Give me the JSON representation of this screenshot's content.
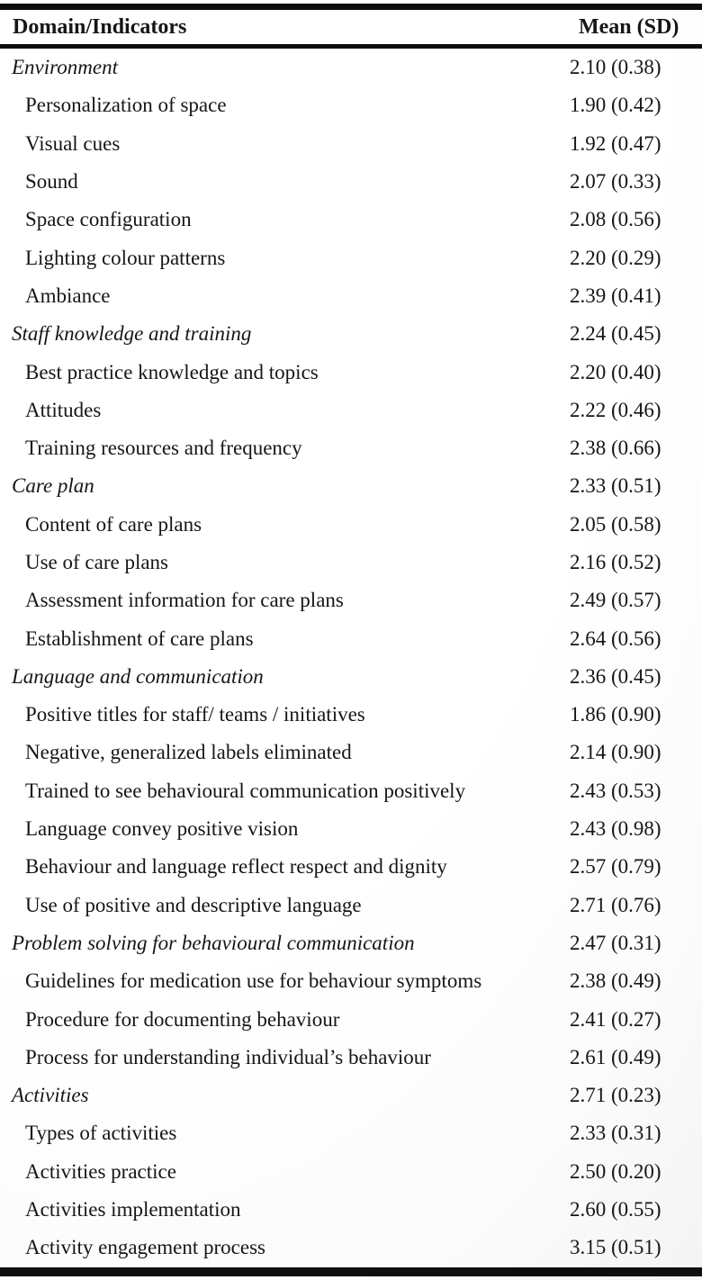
{
  "colors": {
    "rule": "#0d0d0d",
    "text": "#161616",
    "background": "#fdfdfd"
  },
  "table": {
    "header": {
      "domain_label": "Domain/Indicators",
      "mean_label": "Mean (SD)"
    },
    "rows": [
      {
        "level": "domain",
        "label": "Environment",
        "mean_sd": "2.10 (0.38)"
      },
      {
        "level": "indicator",
        "label": "Personalization of space",
        "mean_sd": "1.90 (0.42)"
      },
      {
        "level": "indicator",
        "label": "Visual cues",
        "mean_sd": "1.92 (0.47)"
      },
      {
        "level": "indicator",
        "label": "Sound",
        "mean_sd": "2.07 (0.33)"
      },
      {
        "level": "indicator",
        "label": "Space configuration",
        "mean_sd": "2.08 (0.56)"
      },
      {
        "level": "indicator",
        "label": "Lighting colour patterns",
        "mean_sd": "2.20 (0.29)"
      },
      {
        "level": "indicator",
        "label": "Ambiance",
        "mean_sd": "2.39 (0.41)"
      },
      {
        "level": "domain",
        "label": "Staff knowledge and training",
        "mean_sd": "2.24 (0.45)"
      },
      {
        "level": "indicator",
        "label": "Best practice knowledge and topics",
        "mean_sd": "2.20 (0.40)"
      },
      {
        "level": "indicator",
        "label": "Attitudes",
        "mean_sd": "2.22 (0.46)"
      },
      {
        "level": "indicator",
        "label": "Training resources and frequency",
        "mean_sd": "2.38 (0.66)"
      },
      {
        "level": "domain",
        "label": "Care plan",
        "mean_sd": "2.33 (0.51)"
      },
      {
        "level": "indicator",
        "label": "Content of care plans",
        "mean_sd": "2.05 (0.58)"
      },
      {
        "level": "indicator",
        "label": "Use of care plans",
        "mean_sd": "2.16 (0.52)"
      },
      {
        "level": "indicator",
        "label": "Assessment information for care plans",
        "mean_sd": "2.49 (0.57)"
      },
      {
        "level": "indicator",
        "label": "Establishment of care plans",
        "mean_sd": "2.64 (0.56)"
      },
      {
        "level": "domain",
        "label": "Language and communication",
        "mean_sd": "2.36 (0.45)"
      },
      {
        "level": "indicator",
        "label": "Positive titles for staff/ teams / initiatives",
        "mean_sd": "1.86 (0.90)"
      },
      {
        "level": "indicator",
        "label": "Negative, generalized labels eliminated",
        "mean_sd": "2.14 (0.90)"
      },
      {
        "level": "indicator",
        "label": "Trained to see behavioural communication positively",
        "mean_sd": "2.43 (0.53)"
      },
      {
        "level": "indicator",
        "label": "Language convey positive vision",
        "mean_sd": "2.43 (0.98)"
      },
      {
        "level": "indicator",
        "label": "Behaviour and language reflect respect and dignity",
        "mean_sd": "2.57 (0.79)"
      },
      {
        "level": "indicator",
        "label": "Use of positive and descriptive language",
        "mean_sd": "2.71 (0.76)"
      },
      {
        "level": "domain",
        "label": "Problem solving for behavioural communication",
        "mean_sd": "2.47 (0.31)"
      },
      {
        "level": "indicator",
        "label": "Guidelines for medication use for behaviour symptoms",
        "mean_sd": "2.38 (0.49)"
      },
      {
        "level": "indicator",
        "label": "Procedure for documenting behaviour",
        "mean_sd": "2.41 (0.27)"
      },
      {
        "level": "indicator",
        "label": "Process for understanding individual’s behaviour",
        "mean_sd": "2.61 (0.49)"
      },
      {
        "level": "domain",
        "label": "Activities",
        "mean_sd": "2.71 (0.23)"
      },
      {
        "level": "indicator",
        "label": "Types of activities",
        "mean_sd": "2.33 (0.31)"
      },
      {
        "level": "indicator",
        "label": "Activities practice",
        "mean_sd": "2.50 (0.20)"
      },
      {
        "level": "indicator",
        "label": "Activities implementation",
        "mean_sd": "2.60 (0.55)"
      },
      {
        "level": "indicator",
        "label": "Activity engagement process",
        "mean_sd": "3.15 (0.51)"
      }
    ]
  }
}
